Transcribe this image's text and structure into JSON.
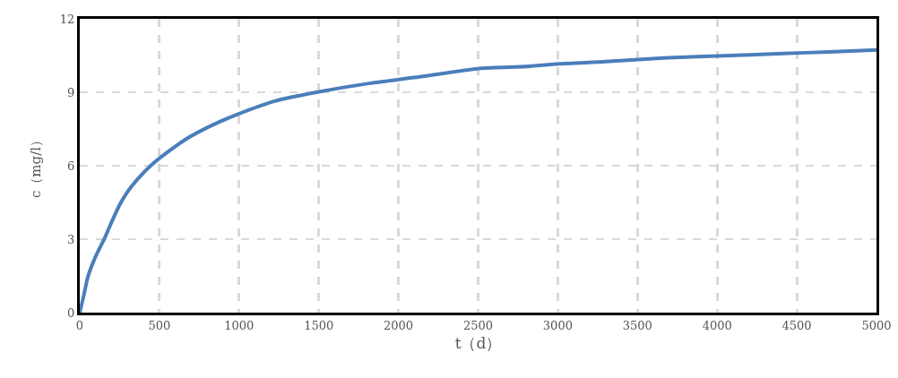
{
  "chart_data": {
    "type": "line",
    "xlabel": "t（d）",
    "ylabel": "c（mg/l）",
    "series": [
      {
        "color": "#4a7ebb",
        "x": [
          0,
          25,
          51,
          100,
          156,
          200,
          250,
          296,
          370,
          445,
          550,
          670,
          830,
          990,
          1224,
          1486,
          1824,
          2100,
          2518,
          2800,
          3004,
          3300,
          3662,
          4000,
          4410,
          4700,
          5000
        ],
        "values": [
          0,
          0.7,
          1.46,
          2.3,
          3.04,
          3.7,
          4.4,
          4.9,
          5.5,
          6.0,
          6.55,
          7.1,
          7.65,
          8.1,
          8.64,
          9.0,
          9.37,
          9.6,
          9.98,
          10.05,
          10.16,
          10.25,
          10.4,
          10.48,
          10.58,
          10.65,
          10.73
        ]
      }
    ],
    "xlim": [
      0,
      5000
    ],
    "xticks": [
      0,
      500,
      1000,
      1500,
      2000,
      2500,
      3000,
      3500,
      4000,
      4500,
      5000
    ],
    "ylim": [
      0,
      12
    ],
    "yticks": [
      0,
      3,
      6,
      9,
      12
    ],
    "grid": true,
    "marker": "none",
    "line_style": "solid"
  }
}
